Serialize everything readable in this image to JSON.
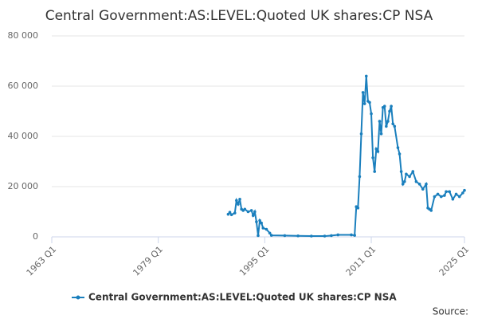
{
  "chart_data": {
    "type": "line",
    "title": "Central Government:AS:LEVEL:Quoted UK shares:CP NSA",
    "source_label": "Source:",
    "xlim": [
      "1963 Q1",
      "2025 Q1"
    ],
    "xticks": [
      "1963 Q1",
      "1979 Q1",
      "1995 Q1",
      "2011 Q1",
      "2025 Q1"
    ],
    "ylim": [
      0,
      80000
    ],
    "yticks": [
      0,
      {
        "value": 20000,
        "label": "20 000"
      },
      {
        "value": 40000,
        "label": "40 000"
      },
      {
        "value": 60000,
        "label": "60 000"
      },
      {
        "value": 80000,
        "label": "80 000"
      }
    ],
    "grid": true,
    "legend": "bottom",
    "series": [
      {
        "name": "Central Government:AS:LEVEL:Quoted UK shares:CP NSA",
        "color": "#1a7fbd",
        "x": [
          "1989 Q3",
          "1989 Q4",
          "1990 Q1",
          "1990 Q3",
          "1990 Q4",
          "1991 Q1",
          "1991 Q2",
          "1991 Q3",
          "1991 Q4",
          "1992 Q1",
          "1992 Q3",
          "1993 Q1",
          "1993 Q2",
          "1993 Q3",
          "1993 Q4",
          "1994 Q1",
          "1994 Q2",
          "1994 Q3",
          "1994 Q4",
          "1995 Q2",
          "1995 Q4",
          "1996 Q1",
          "1998 Q1",
          "2000 Q1",
          "2002 Q1",
          "2004 Q1",
          "2005 Q1",
          "2006 Q1",
          "2008 Q1",
          "2008 Q3",
          "2008 Q4",
          "2009 Q1",
          "2009 Q2",
          "2009 Q3",
          "2009 Q4",
          "2010 Q1",
          "2010 Q2",
          "2010 Q3",
          "2010 Q4",
          "2011 Q1",
          "2011 Q2",
          "2011 Q3",
          "2011 Q4",
          "2012 Q1",
          "2012 Q2",
          "2012 Q3",
          "2012 Q4",
          "2013 Q1",
          "2013 Q2",
          "2013 Q3",
          "2013 Q4",
          "2014 Q1",
          "2014 Q2",
          "2014 Q3",
          "2015 Q1",
          "2015 Q2",
          "2015 Q3",
          "2015 Q4",
          "2016 Q1",
          "2016 Q2",
          "2016 Q4",
          "2017 Q2",
          "2017 Q4",
          "2018 Q2",
          "2018 Q4",
          "2019 Q2",
          "2019 Q3",
          "2019 Q4",
          "2020 Q1",
          "2020 Q3",
          "2021 Q1",
          "2021 Q3",
          "2022 Q1",
          "2022 Q2",
          "2022 Q4",
          "2023 Q2",
          "2023 Q4",
          "2024 Q2",
          "2024 Q4",
          "2025 Q1"
        ],
        "values": [
          9000,
          9800,
          8800,
          9500,
          14500,
          13000,
          15000,
          11000,
          10500,
          11000,
          10000,
          10500,
          8500,
          10000,
          6000,
          500,
          6500,
          5500,
          3500,
          3000,
          1500,
          600,
          500,
          400,
          300,
          300,
          500,
          800,
          800,
          600,
          12000,
          11500,
          24000,
          41000,
          57500,
          53000,
          64000,
          54000,
          53500,
          49000,
          31500,
          26000,
          35000,
          34000,
          46000,
          41000,
          51500,
          52000,
          44000,
          46000,
          50000,
          52000,
          45000,
          44000,
          35500,
          33000,
          26000,
          21000,
          22000,
          25000,
          24000,
          26000,
          22000,
          21000,
          19000,
          21000,
          11500,
          11000,
          10500,
          16000,
          17000,
          16000,
          16500,
          18000,
          18000,
          15000,
          17000,
          16000,
          17500,
          18500
        ]
      }
    ]
  }
}
